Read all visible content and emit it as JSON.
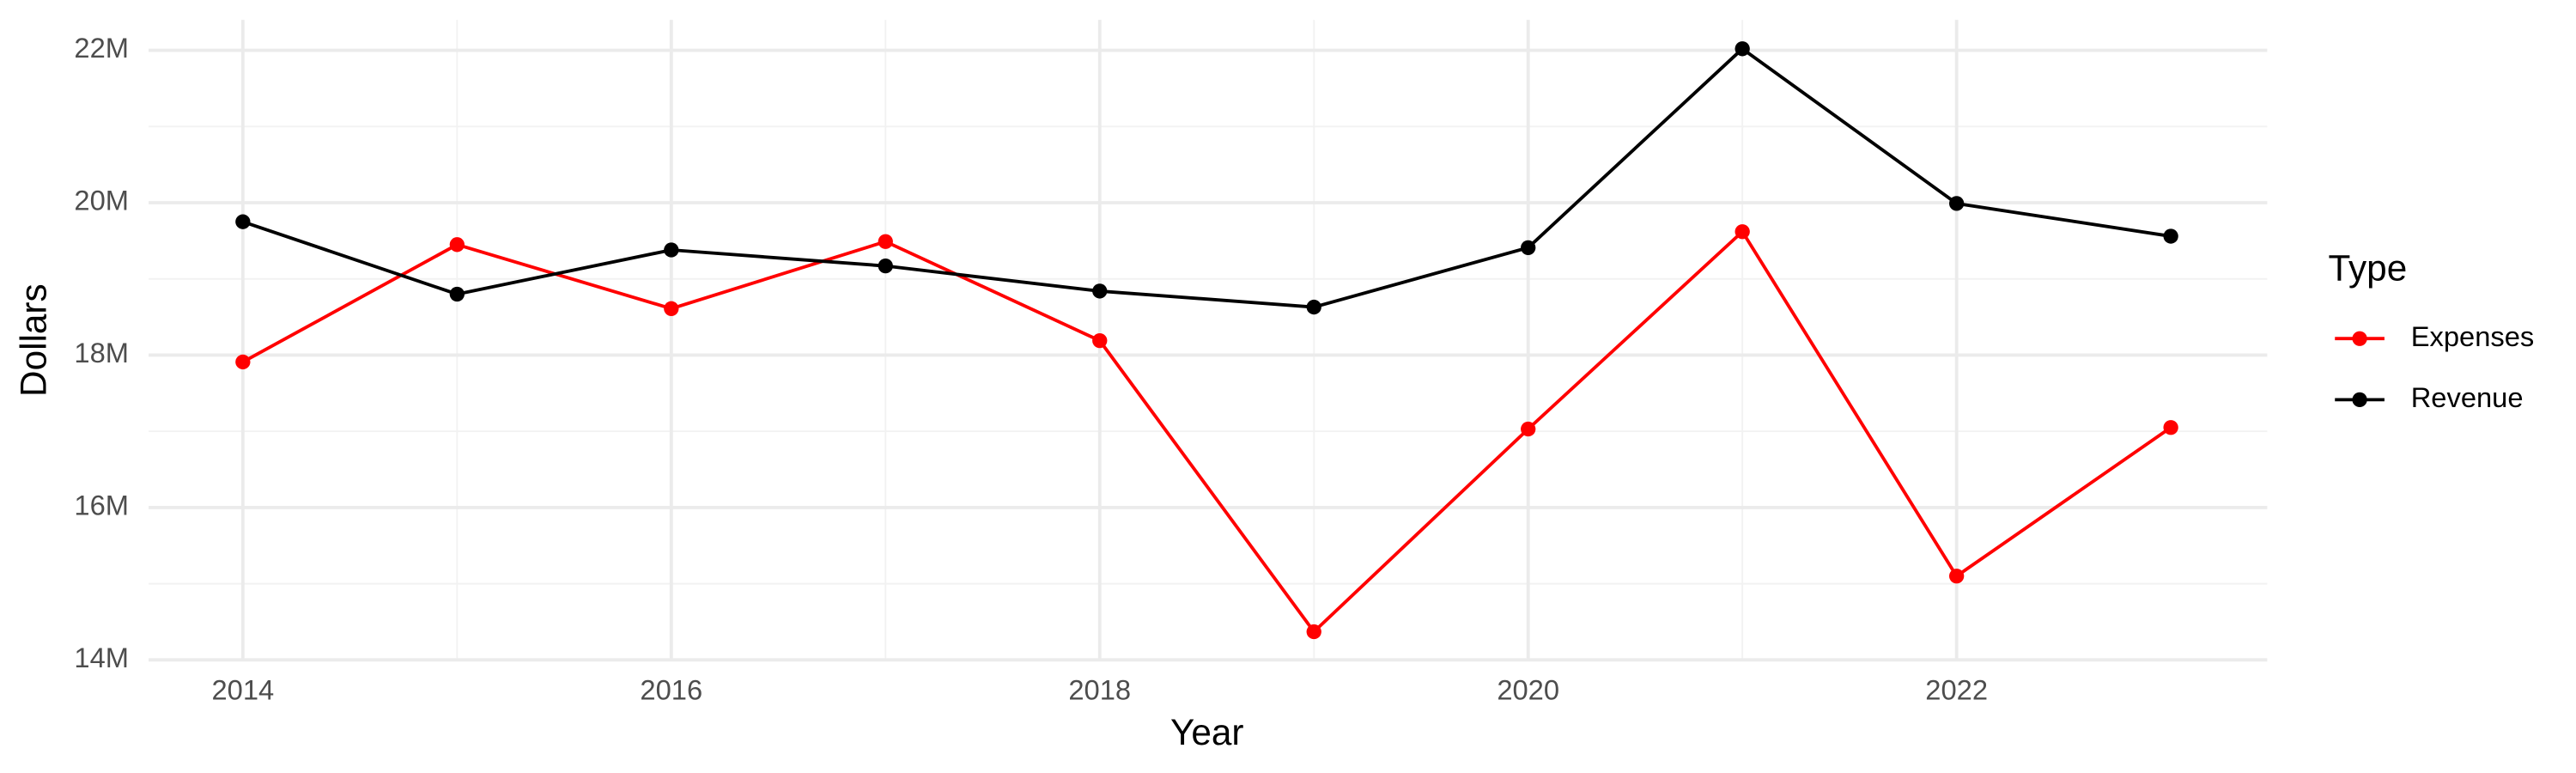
{
  "chart_data": {
    "type": "line",
    "x_label": "Year",
    "y_label": "Dollars",
    "legend_title": "Type",
    "x": [
      2014,
      2015,
      2016,
      2017,
      2018,
      2019,
      2020,
      2021,
      2022,
      2023
    ],
    "series": [
      {
        "name": "Expenses",
        "color": "#ff0000",
        "values": [
          17910000,
          19450000,
          18610000,
          19490000,
          18190000,
          14370000,
          17030000,
          19620000,
          15100000,
          17050000
        ]
      },
      {
        "name": "Revenue",
        "color": "#000000",
        "values": [
          19750000,
          18800000,
          19380000,
          19170000,
          18840000,
          18630000,
          19410000,
          22020000,
          19990000,
          19560000
        ]
      }
    ],
    "xlim": [
      2013.56,
      2023.45
    ],
    "xticks": [
      2014,
      2016,
      2018,
      2020,
      2022
    ],
    "ylim": [
      13990000,
      22400000
    ],
    "yticks": [
      {
        "value": 14000000,
        "label": "14M"
      },
      {
        "value": 16000000,
        "label": "16M"
      },
      {
        "value": 18000000,
        "label": "18M"
      },
      {
        "value": 20000000,
        "label": "20M"
      },
      {
        "value": 22000000,
        "label": "22M"
      }
    ],
    "grid": true,
    "legend": "right"
  }
}
